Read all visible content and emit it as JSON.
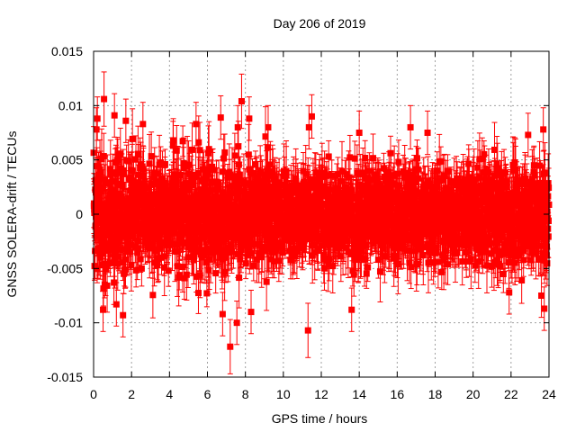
{
  "chart_data": {
    "type": "scatter",
    "title": "Day 206 of 2019",
    "xlabel": "GPS time / hours",
    "ylabel": "GNSS SOLERA-drift / TECUs",
    "xlim": [
      0,
      24
    ],
    "ylim": [
      -0.015,
      0.015
    ],
    "xticks": [
      0,
      2,
      4,
      6,
      8,
      10,
      12,
      14,
      16,
      18,
      20,
      22,
      24
    ],
    "yticks": [
      -0.015,
      -0.01,
      -0.005,
      0,
      0.005,
      0.01,
      0.015
    ],
    "ytick_labels": [
      "-0.015",
      "-0.01",
      "-0.005",
      "0",
      "0.005",
      "0.01",
      "0.015"
    ],
    "grid": true,
    "series_color": "#ff0000",
    "marker": "square",
    "error_bars": true,
    "outliers": [
      {
        "x": 0.55,
        "y": 0.0106,
        "err": 0.0025
      },
      {
        "x": 0.2,
        "y": 0.0088,
        "err": 0.002
      },
      {
        "x": 0.15,
        "y": 0.0078,
        "err": 0.002
      },
      {
        "x": 1.1,
        "y": 0.0091,
        "err": 0.002
      },
      {
        "x": 1.7,
        "y": 0.0086,
        "err": 0.002
      },
      {
        "x": 0.5,
        "y": -0.0088,
        "err": 0.002
      },
      {
        "x": 1.2,
        "y": -0.0083,
        "err": 0.002
      },
      {
        "x": 1.55,
        "y": -0.0093,
        "err": 0.002
      },
      {
        "x": 2.6,
        "y": 0.0083,
        "err": 0.002
      },
      {
        "x": 4.2,
        "y": 0.0068,
        "err": 0.002
      },
      {
        "x": 5.4,
        "y": 0.0083,
        "err": 0.002
      },
      {
        "x": 6.7,
        "y": 0.0089,
        "err": 0.002
      },
      {
        "x": 7.8,
        "y": 0.0104,
        "err": 0.0025
      },
      {
        "x": 7.6,
        "y": 0.008,
        "err": 0.002
      },
      {
        "x": 8.2,
        "y": 0.0088,
        "err": 0.002
      },
      {
        "x": 9.2,
        "y": 0.008,
        "err": 0.002
      },
      {
        "x": 6.8,
        "y": -0.0092,
        "err": 0.002
      },
      {
        "x": 7.2,
        "y": -0.0122,
        "err": 0.0025
      },
      {
        "x": 7.55,
        "y": -0.01,
        "err": 0.002
      },
      {
        "x": 8.3,
        "y": -0.009,
        "err": 0.002
      },
      {
        "x": 11.3,
        "y": -0.0107,
        "err": 0.0025
      },
      {
        "x": 11.5,
        "y": 0.009,
        "err": 0.002
      },
      {
        "x": 11.35,
        "y": 0.008,
        "err": 0.002
      },
      {
        "x": 13.6,
        "y": -0.0088,
        "err": 0.002
      },
      {
        "x": 14.0,
        "y": 0.0075,
        "err": 0.002
      },
      {
        "x": 16.7,
        "y": 0.008,
        "err": 0.002
      },
      {
        "x": 17.6,
        "y": 0.0075,
        "err": 0.002
      },
      {
        "x": 21.9,
        "y": -0.0072,
        "err": 0.002
      },
      {
        "x": 22.9,
        "y": 0.0073,
        "err": 0.002
      },
      {
        "x": 23.7,
        "y": 0.0078,
        "err": 0.002
      },
      {
        "x": 23.75,
        "y": -0.0087,
        "err": 0.002
      },
      {
        "x": 23.6,
        "y": -0.0075,
        "err": 0.002
      }
    ]
  }
}
